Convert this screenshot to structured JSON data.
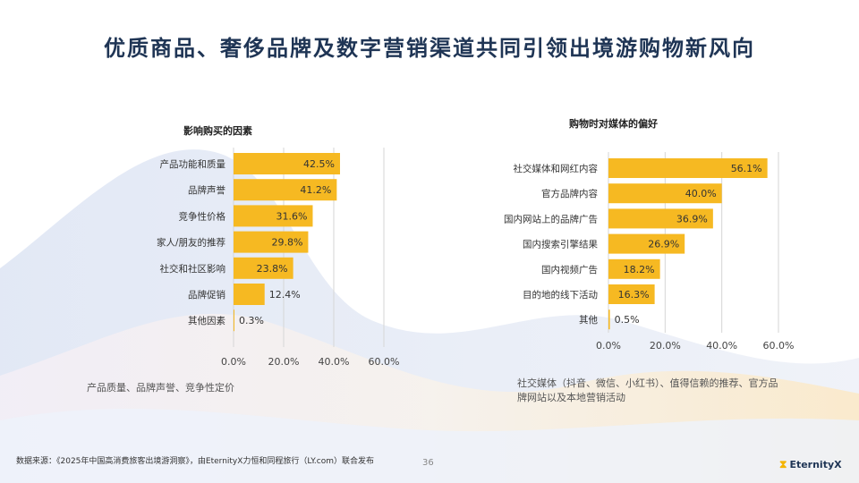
{
  "title": "优质商品、奢侈品牌及数字营销渠道共同引领出境游购物新风向",
  "colors": {
    "bar": "#f6b922",
    "title": "#1f3555",
    "grid": "#d6d6d6"
  },
  "chart_data": [
    {
      "type": "bar",
      "orientation": "horizontal",
      "title": "影响购买的因素",
      "categories": [
        "产品功能和质量",
        "品牌声誉",
        "竞争性价格",
        "家人/朋友的推荐",
        "社交和社区影响",
        "品牌促销",
        "其他因素"
      ],
      "values": [
        42.5,
        41.2,
        31.6,
        29.8,
        23.8,
        12.4,
        0.3
      ],
      "value_labels": [
        "42.5%",
        "41.2%",
        "31.6%",
        "29.8%",
        "23.8%",
        "12.4%",
        "0.3%"
      ],
      "xlim": [
        0,
        60
      ],
      "xticks": [
        "0.0%",
        "20.0%",
        "40.0%",
        "60.0%"
      ],
      "grid": true,
      "note": "产品质量、品牌声誉、竞争性定价"
    },
    {
      "type": "bar",
      "orientation": "horizontal",
      "title": "购物时对媒体的偏好",
      "categories": [
        "社交媒体和网红内容",
        "官方品牌内容",
        "国内网站上的品牌广告",
        "国内搜索引擎结果",
        "国内视频广告",
        "目的地的线下活动",
        "其他"
      ],
      "values": [
        56.1,
        40.0,
        36.9,
        26.9,
        18.2,
        16.3,
        0.5
      ],
      "value_labels": [
        "56.1%",
        "40.0%",
        "36.9%",
        "26.9%",
        "18.2%",
        "16.3%",
        "0.5%"
      ],
      "xlim": [
        0,
        60
      ],
      "xticks": [
        "0.0%",
        "20.0%",
        "40.0%",
        "60.0%"
      ],
      "grid": true,
      "note": "社交媒体（抖音、微信、小红书）、值得信赖的推荐、官方品牌网站以及本地营销活动"
    }
  ],
  "footer": {
    "source": "数据来源：《2025年中国高消费旅客出境游洞察》，由EternityX力恒和同程旅行（LY.com）联合发布",
    "page": "36",
    "logo": "EternityX",
    "logo_mark": "⧗"
  }
}
